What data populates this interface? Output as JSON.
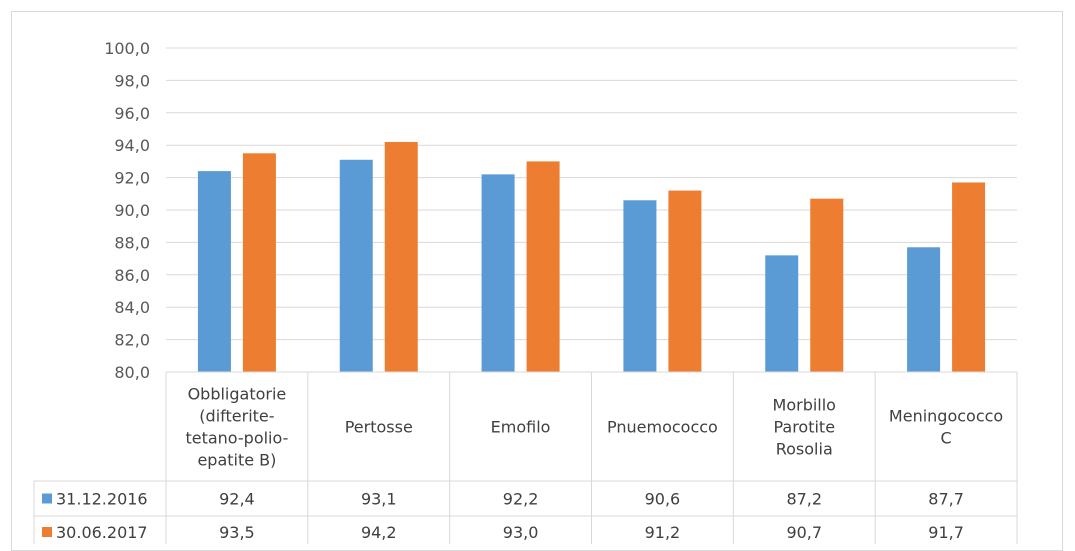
{
  "chart_data": {
    "type": "bar",
    "categories": [
      [
        "Obbligatorie",
        "(difterite-",
        "tetano-polio-",
        "epatite B)"
      ],
      [
        "Pertosse"
      ],
      [
        "Emofilo"
      ],
      [
        "Pnuemococco"
      ],
      [
        "Morbillo",
        "Parotite",
        "Rosolia"
      ],
      [
        "Meningococco",
        "C"
      ]
    ],
    "series": [
      {
        "name": "31.12.2016",
        "color": "#5b9bd5",
        "values": [
          92.4,
          93.1,
          92.2,
          90.6,
          87.2,
          87.7
        ],
        "labels": [
          "92,4",
          "93,1",
          "92,2",
          "90,6",
          "87,2",
          "87,7"
        ]
      },
      {
        "name": "30.06.2017",
        "color": "#ed7d31",
        "values": [
          93.5,
          94.2,
          93.0,
          91.2,
          90.7,
          91.7
        ],
        "labels": [
          "93,5",
          "94,2",
          "93,0",
          "91,2",
          "90,7",
          "91,7"
        ]
      }
    ],
    "ylim": [
      80,
      100
    ],
    "yticks": [
      {
        "value": 80,
        "label": "80,0"
      },
      {
        "value": 82,
        "label": "82,0"
      },
      {
        "value": 84,
        "label": "84,0"
      },
      {
        "value": 86,
        "label": "86,0"
      },
      {
        "value": 88,
        "label": "88,0"
      },
      {
        "value": 90,
        "label": "90,0"
      },
      {
        "value": 92,
        "label": "92,0"
      },
      {
        "value": 94,
        "label": "94,0"
      },
      {
        "value": 96,
        "label": "96,0"
      },
      {
        "value": 98,
        "label": "98,0"
      },
      {
        "value": 100,
        "label": "100,0"
      }
    ],
    "grid": true,
    "legend": "data-table",
    "gridline_color": "#d9d9d9"
  }
}
